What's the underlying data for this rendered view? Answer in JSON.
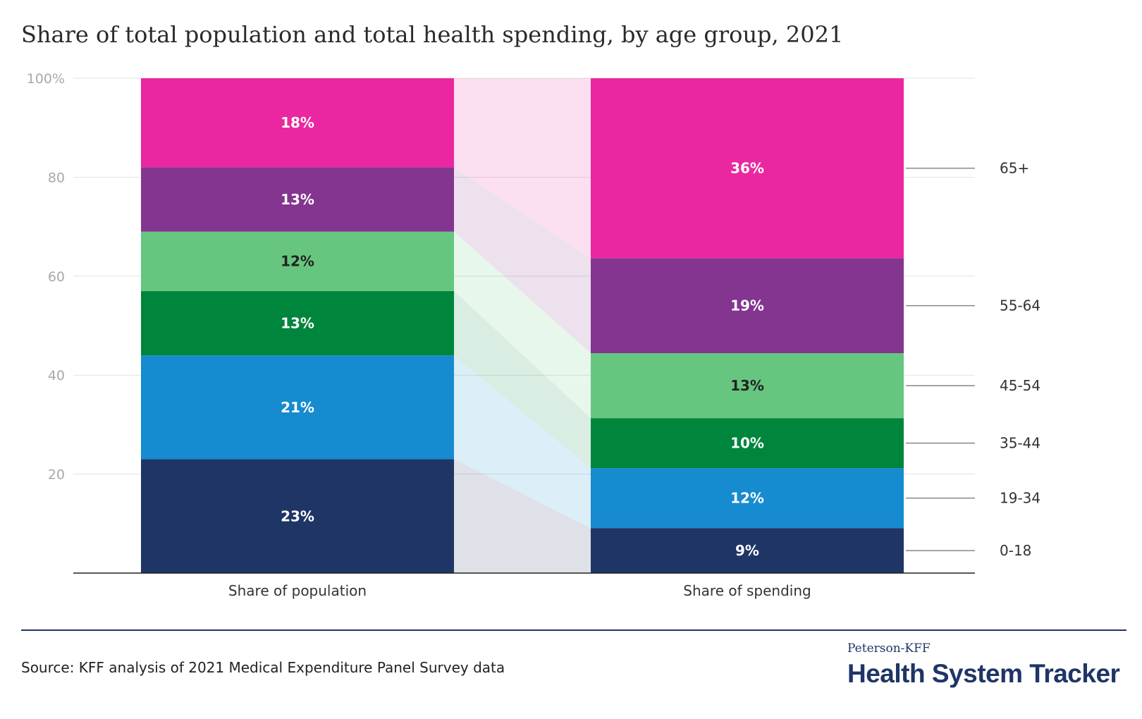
{
  "title": "Share of total population and total health spending, by age group, 2021",
  "source": "Source: KFF analysis of 2021 Medical Expenditure Panel Survey data",
  "brand": {
    "small": "Peterson-KFF",
    "large": "Health System Tracker"
  },
  "chart_data": {
    "type": "bar",
    "stacked": true,
    "categories": [
      "Share of population",
      "Share of spending"
    ],
    "ylim": [
      0,
      100
    ],
    "yticks": [
      20,
      40,
      60,
      80,
      100
    ],
    "ytick_labels": [
      "20",
      "40",
      "60",
      "80",
      "100%"
    ],
    "grid": true,
    "connectors": true,
    "legend_placement": "right",
    "series": [
      {
        "name": "0-18",
        "color": "#1f3566",
        "values": [
          23,
          9
        ],
        "labels": [
          "23%",
          "9%"
        ],
        "label_color": "#ffffff"
      },
      {
        "name": "19-34",
        "color": "#168bcf",
        "values": [
          21,
          12
        ],
        "labels": [
          "21%",
          "12%"
        ],
        "label_color": "#ffffff"
      },
      {
        "name": "35-44",
        "color": "#00853d",
        "values": [
          13,
          10
        ],
        "labels": [
          "13%",
          "10%"
        ],
        "label_color": "#ffffff"
      },
      {
        "name": "45-54",
        "color": "#66c67f",
        "values": [
          12,
          13
        ],
        "labels": [
          "12%",
          "13%"
        ],
        "label_color": "#222222"
      },
      {
        "name": "55-64",
        "color": "#83358f",
        "values": [
          13,
          19
        ],
        "labels": [
          "13%",
          "19%"
        ],
        "label_color": "#ffffff"
      },
      {
        "name": "65+",
        "color": "#ea27a0",
        "values": [
          18,
          36
        ],
        "labels": [
          "18%",
          "36%"
        ],
        "label_color": "#ffffff"
      }
    ]
  }
}
